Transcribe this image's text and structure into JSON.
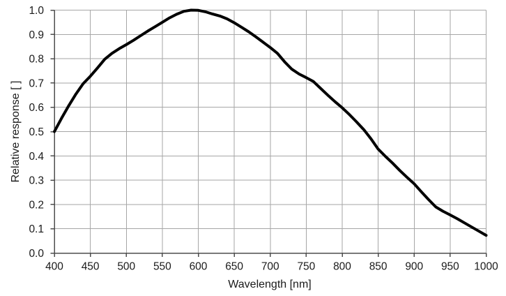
{
  "chart_data": {
    "type": "line",
    "title": "",
    "xlabel": "Wavelength [nm]",
    "ylabel": "Relative response [ ]",
    "xlim": [
      400,
      1000
    ],
    "ylim": [
      0.0,
      1.0
    ],
    "grid": true,
    "legend": "none",
    "colors": {
      "line": "#000000",
      "grid": "#a6a6a6",
      "axis": "#4d4d4d",
      "text": "#1a1a1a",
      "background": "#ffffff"
    },
    "xticks": [
      400,
      450,
      500,
      550,
      600,
      650,
      700,
      750,
      800,
      850,
      900,
      950,
      1000
    ],
    "xtick_labels": [
      "400",
      "450",
      "500",
      "550",
      "600",
      "650",
      "700",
      "750",
      "800",
      "850",
      "900",
      "950",
      "1000"
    ],
    "yticks": [
      0.0,
      0.1,
      0.2,
      0.3,
      0.4,
      0.5,
      0.6,
      0.7,
      0.8,
      0.9,
      1.0
    ],
    "ytick_labels": [
      "0.0",
      "0.1",
      "0.2",
      "0.3",
      "0.4",
      "0.5",
      "0.6",
      "0.7",
      "0.8",
      "0.9",
      "1.0"
    ],
    "series": [
      {
        "name": "relative-response",
        "color": "#000000",
        "line_width": 4,
        "x": [
          400,
          410,
          420,
          430,
          440,
          450,
          460,
          470,
          480,
          490,
          500,
          510,
          520,
          530,
          540,
          550,
          560,
          570,
          580,
          590,
          600,
          610,
          620,
          630,
          640,
          650,
          660,
          670,
          680,
          690,
          700,
          710,
          720,
          730,
          740,
          750,
          760,
          770,
          780,
          790,
          800,
          810,
          820,
          830,
          840,
          850,
          860,
          870,
          880,
          890,
          900,
          910,
          920,
          930,
          940,
          950,
          960,
          970,
          980,
          990,
          1000
        ],
        "y": [
          0.5,
          0.555,
          0.607,
          0.655,
          0.697,
          0.728,
          0.762,
          0.798,
          0.822,
          0.841,
          0.858,
          0.876,
          0.895,
          0.914,
          0.932,
          0.95,
          0.968,
          0.983,
          0.995,
          1.0,
          0.999,
          0.993,
          0.984,
          0.976,
          0.964,
          0.948,
          0.93,
          0.911,
          0.89,
          0.868,
          0.846,
          0.822,
          0.787,
          0.757,
          0.737,
          0.722,
          0.706,
          0.678,
          0.65,
          0.623,
          0.598,
          0.57,
          0.54,
          0.508,
          0.47,
          0.428,
          0.398,
          0.37,
          0.34,
          0.312,
          0.285,
          0.252,
          0.22,
          0.19,
          0.172,
          0.157,
          0.141,
          0.124,
          0.107,
          0.09,
          0.073
        ]
      }
    ]
  }
}
